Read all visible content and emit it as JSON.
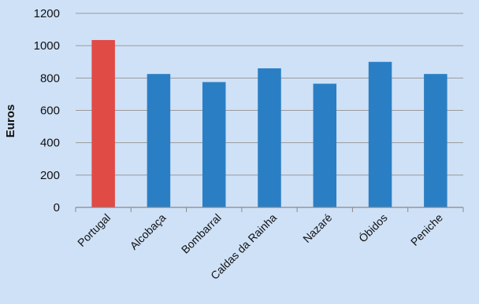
{
  "chart_data": {
    "type": "bar",
    "title": "",
    "xlabel": "",
    "ylabel": "Euros",
    "ylim": [
      0,
      1200
    ],
    "yticks": [
      0,
      200,
      400,
      600,
      800,
      1000,
      1200
    ],
    "grid": true,
    "legend": "none",
    "categories": [
      "Portugal",
      "Alcobaça",
      "Bombarral",
      "Caldas da Rainha",
      "Nazaré",
      "Óbidos",
      "Peniche"
    ],
    "values": [
      1035,
      825,
      775,
      860,
      765,
      900,
      825
    ],
    "colors": {
      "highlight": "#e04b45",
      "bar": "#2a7fc4",
      "grid": "#9a9a9a",
      "background": "#cfe1f7"
    },
    "bar_colors": [
      "#e04b45",
      "#2a7fc4",
      "#2a7fc4",
      "#2a7fc4",
      "#2a7fc4",
      "#2a7fc4",
      "#2a7fc4"
    ]
  }
}
